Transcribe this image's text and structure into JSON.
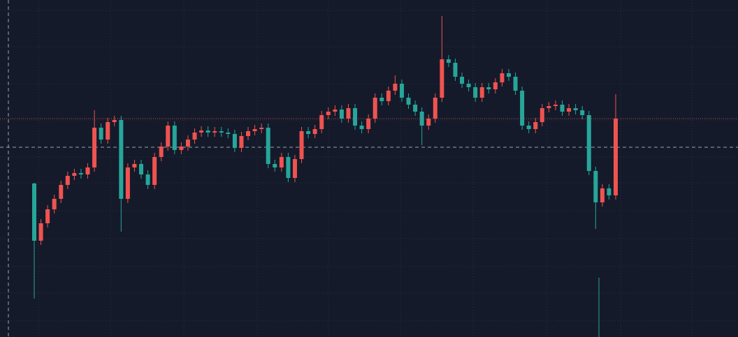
{
  "chart_data": {
    "type": "candlestick",
    "up_color": "#ef5350",
    "down_color": "#26a69a",
    "ylim": [
      0,
      483
    ],
    "open": [
      220,
      138,
      163,
      183,
      198,
      218,
      231,
      235,
      233,
      243,
      300,
      283,
      308,
      311,
      198,
      243,
      248,
      233,
      218,
      258,
      273,
      303,
      268,
      273,
      283,
      293,
      296,
      293,
      295,
      293,
      291,
      271,
      288,
      295,
      298,
      300,
      248,
      243,
      258,
      228,
      255,
      295,
      291,
      298,
      318,
      323,
      326,
      313,
      328,
      303,
      298,
      313,
      343,
      338,
      353,
      363,
      343,
      333,
      323,
      303,
      313,
      343,
      398,
      393,
      373,
      363,
      358,
      343,
      358,
      355,
      365,
      378,
      373,
      353,
      303,
      298,
      308,
      328,
      331,
      333,
      323,
      328,
      325,
      318,
      238,
      193,
      213,
      203
    ],
    "high": [
      221,
      169,
      189,
      204,
      224,
      237,
      241,
      241,
      249,
      325,
      306,
      314,
      317,
      317,
      249,
      254,
      254,
      239,
      264,
      279,
      309,
      309,
      279,
      289,
      299,
      302,
      302,
      301,
      301,
      299,
      297,
      294,
      301,
      304,
      306,
      306,
      254,
      264,
      264,
      261,
      301,
      301,
      304,
      324,
      329,
      332,
      332,
      334,
      334,
      309,
      319,
      349,
      349,
      359,
      375,
      369,
      349,
      339,
      329,
      319,
      349,
      460,
      404,
      399,
      379,
      369,
      364,
      364,
      364,
      371,
      384,
      384,
      379,
      359,
      309,
      314,
      334,
      337,
      339,
      339,
      334,
      334,
      331,
      324,
      244,
      219,
      219,
      348
    ],
    "low": [
      55,
      132,
      157,
      177,
      192,
      212,
      225,
      227,
      227,
      237,
      277,
      277,
      302,
      151,
      192,
      237,
      227,
      212,
      212,
      252,
      267,
      262,
      262,
      267,
      277,
      287,
      287,
      287,
      287,
      285,
      265,
      265,
      282,
      289,
      292,
      242,
      237,
      237,
      222,
      222,
      249,
      285,
      285,
      292,
      312,
      317,
      307,
      307,
      297,
      292,
      292,
      307,
      332,
      332,
      347,
      337,
      327,
      317,
      275,
      297,
      307,
      337,
      387,
      367,
      357,
      352,
      337,
      337,
      349,
      349,
      359,
      367,
      347,
      297,
      292,
      292,
      302,
      322,
      325,
      317,
      317,
      319,
      312,
      232,
      155,
      187,
      197,
      197
    ],
    "close": [
      138,
      163,
      183,
      198,
      218,
      231,
      235,
      233,
      243,
      300,
      283,
      308,
      311,
      198,
      243,
      248,
      233,
      218,
      258,
      273,
      303,
      268,
      273,
      283,
      293,
      296,
      293,
      295,
      293,
      291,
      271,
      288,
      295,
      298,
      300,
      248,
      243,
      258,
      228,
      255,
      295,
      291,
      298,
      318,
      323,
      326,
      313,
      328,
      303,
      298,
      313,
      343,
      338,
      353,
      363,
      343,
      333,
      323,
      303,
      313,
      343,
      398,
      393,
      373,
      363,
      358,
      343,
      358,
      355,
      365,
      378,
      373,
      353,
      303,
      298,
      308,
      328,
      331,
      333,
      323,
      328,
      325,
      318,
      238,
      193,
      213,
      203,
      313
    ]
  }
}
